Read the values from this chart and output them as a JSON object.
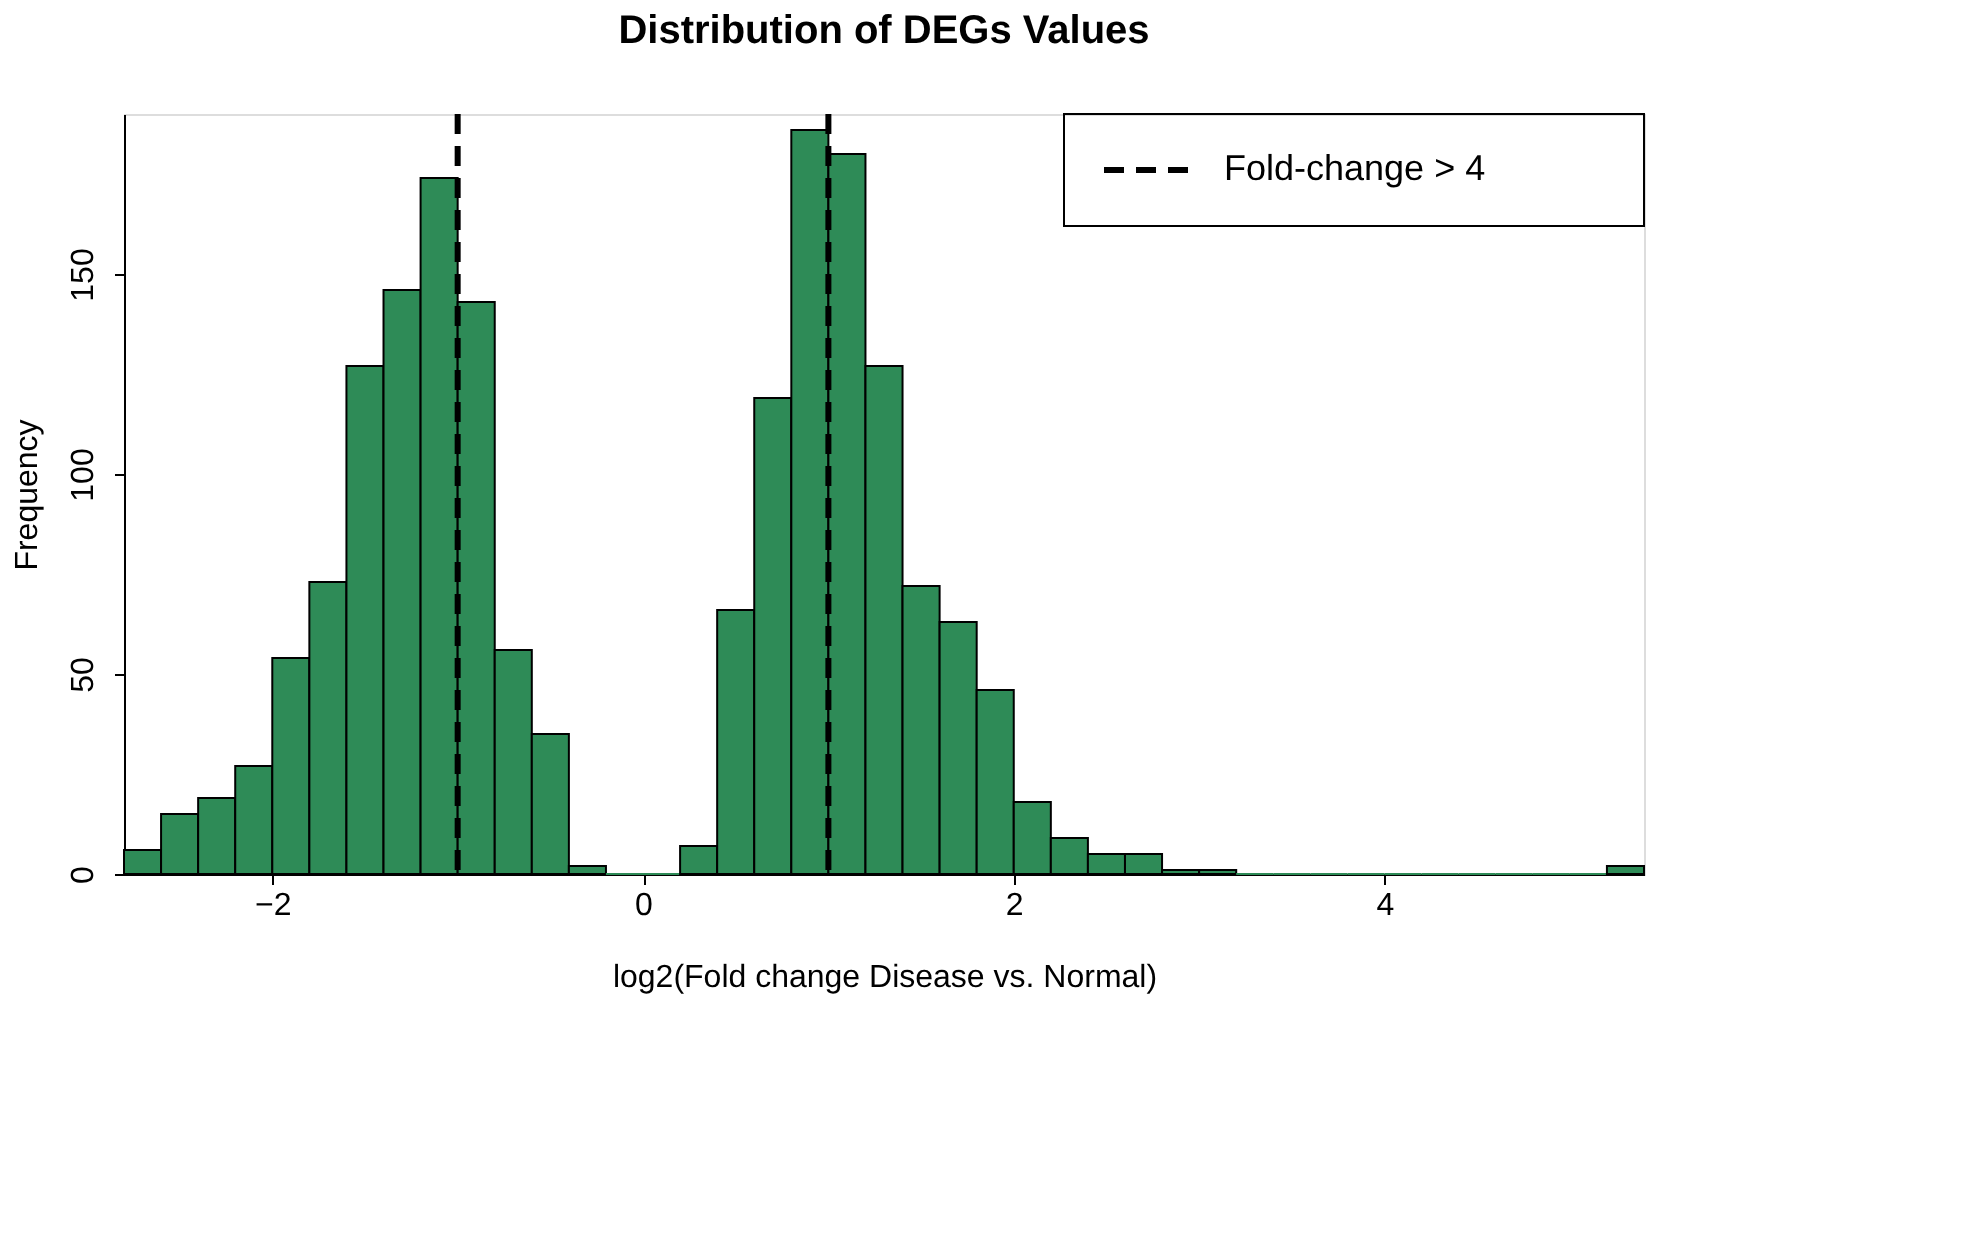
{
  "chart_data": {
    "type": "histogram",
    "title": "Distribution of DEGs Values",
    "xlabel": "log2(Fold change Disease vs. Normal)",
    "ylabel": "Frequency",
    "bins": [
      -2.8,
      -2.6,
      -2.4,
      -2.2,
      -2.0,
      -1.8,
      -1.6,
      -1.4,
      -1.2,
      -1.0,
      -0.8,
      -0.6,
      -0.4,
      -0.2,
      0.0,
      0.2,
      0.4,
      0.6,
      0.8,
      1.0,
      1.2,
      1.4,
      1.6,
      1.8,
      2.0,
      2.2,
      2.4,
      2.6,
      2.8,
      3.0,
      3.2,
      3.4,
      3.6,
      3.8,
      4.0,
      4.2,
      4.4,
      4.6,
      4.8,
      5.0,
      5.2,
      5.4
    ],
    "values": [
      6,
      15,
      19,
      27,
      54,
      73,
      127,
      146,
      174,
      143,
      56,
      35,
      2,
      0,
      0,
      7,
      66,
      119,
      186,
      180,
      127,
      72,
      63,
      46,
      18,
      9,
      5,
      5,
      1,
      1,
      0,
      0,
      0,
      0,
      0,
      0,
      0,
      0,
      0,
      0,
      2
    ],
    "color": "#2e8b57",
    "xlim": [
      -2.8,
      5.4
    ],
    "xticks": [
      -2,
      0,
      2,
      4
    ],
    "ylim": [
      0,
      190
    ],
    "yticks": [
      0,
      50,
      100,
      150
    ],
    "ref_lines": [
      {
        "axis": "x",
        "value": -1,
        "label": "Fold-change > 4",
        "color": "#000000",
        "line_style": "dashed"
      },
      {
        "axis": "x",
        "value": 1,
        "label": null,
        "color": "#000000",
        "line_style": "dashed"
      }
    ],
    "legend": "top right",
    "grid": false
  }
}
